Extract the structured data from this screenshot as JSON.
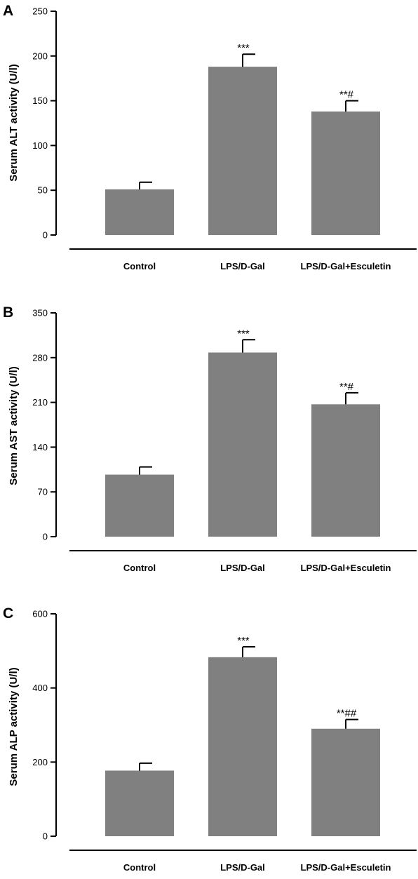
{
  "chart_data": [
    {
      "panel": "A",
      "type": "bar",
      "ylabel": "Serum ALT activity (U/l)",
      "categories": [
        "Control",
        "LPS/D-Gal",
        "LPS/D-Gal+Esculetin"
      ],
      "values": [
        51,
        188,
        138
      ],
      "errors": [
        8,
        14,
        12
      ],
      "annotations": [
        "",
        "***",
        "**#"
      ],
      "yticks": [
        0,
        50,
        100,
        150,
        200,
        250
      ],
      "ylim": [
        0,
        250
      ],
      "colors": {
        "bar": "#808080",
        "axis": "#000000"
      }
    },
    {
      "panel": "B",
      "type": "bar",
      "ylabel": "Serum AST activity (U/l)",
      "categories": [
        "Control",
        "LPS/D-Gal",
        "LPS/D-Gal+Esculetin"
      ],
      "values": [
        97,
        288,
        207
      ],
      "errors": [
        12,
        20,
        18
      ],
      "annotations": [
        "",
        "***",
        "**#"
      ],
      "yticks": [
        0,
        70,
        140,
        210,
        280,
        350
      ],
      "ylim": [
        0,
        350
      ],
      "colors": {
        "bar": "#808080",
        "axis": "#000000"
      }
    },
    {
      "panel": "C",
      "type": "bar",
      "ylabel": "Serum ALP activity (U/l)",
      "categories": [
        "Control",
        "LPS/D-Gal",
        "LPS/D-Gal+Esculetin"
      ],
      "values": [
        177,
        483,
        290
      ],
      "errors": [
        20,
        28,
        25
      ],
      "annotations": [
        "",
        "***",
        "**##"
      ],
      "yticks": [
        0,
        200,
        400,
        600
      ],
      "ylim": [
        0,
        600
      ],
      "colors": {
        "bar": "#808080",
        "axis": "#000000"
      }
    }
  ]
}
